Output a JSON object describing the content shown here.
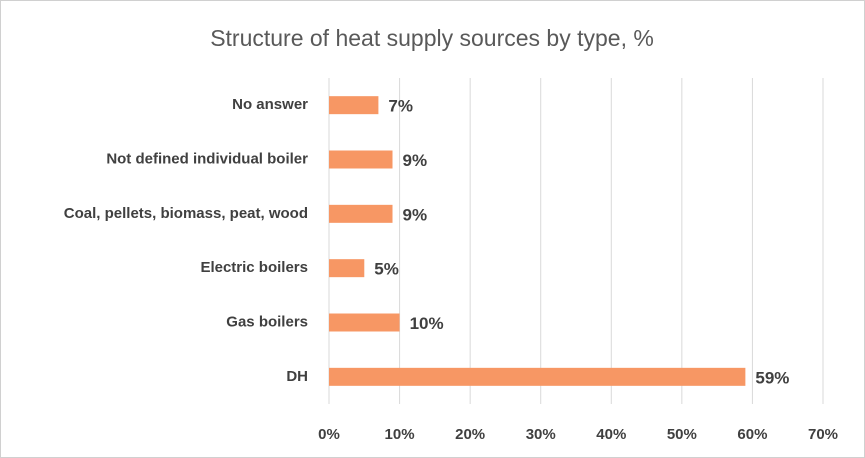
{
  "chart_data": {
    "type": "bar",
    "orientation": "horizontal",
    "title": "Structure of heat supply sources by type, %",
    "categories": [
      "No answer",
      "Not defined individual boiler",
      "Coal, pellets, biomass, peat, wood",
      "Electric boilers",
      "Gas boilers",
      "DH"
    ],
    "values": [
      7,
      9,
      9,
      5,
      10,
      59
    ],
    "value_labels": [
      "7%",
      "9%",
      "9%",
      "5%",
      "10%",
      "59%"
    ],
    "color": "#f79764",
    "xlim": [
      0,
      70
    ],
    "xticks": [
      {
        "value": 0,
        "label": "0%"
      },
      {
        "value": 10,
        "label": "10%"
      },
      {
        "value": 20,
        "label": "20%"
      },
      {
        "value": 30,
        "label": "30%"
      },
      {
        "value": 40,
        "label": "40%"
      },
      {
        "value": 50,
        "label": "50%"
      },
      {
        "value": 60,
        "label": "60%"
      },
      {
        "value": 70,
        "label": "70%"
      }
    ],
    "grid": true
  }
}
